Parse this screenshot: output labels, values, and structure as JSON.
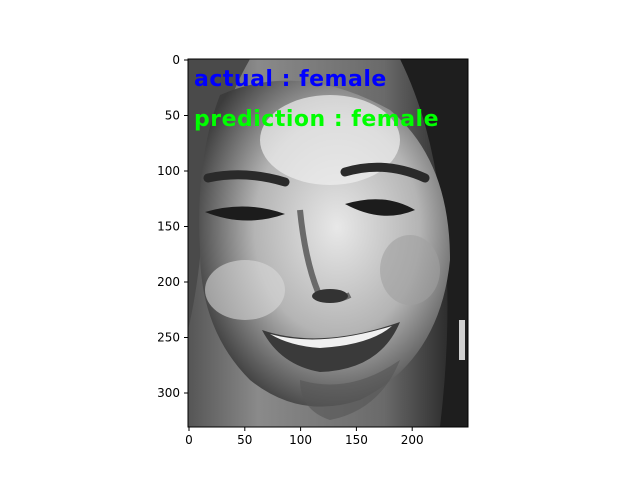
{
  "image": {
    "overlay": {
      "actual_label": "actual : female",
      "prediction_label": "prediction : female",
      "actual_color": "#0000ff",
      "prediction_color": "#00ff00"
    }
  },
  "axes": {
    "x_ticks": [
      "0",
      "50",
      "100",
      "150",
      "200"
    ],
    "y_ticks": [
      "0",
      "50",
      "100",
      "150",
      "200",
      "250",
      "300"
    ],
    "x_range": [
      0,
      250
    ],
    "y_range": [
      0,
      330
    ]
  }
}
